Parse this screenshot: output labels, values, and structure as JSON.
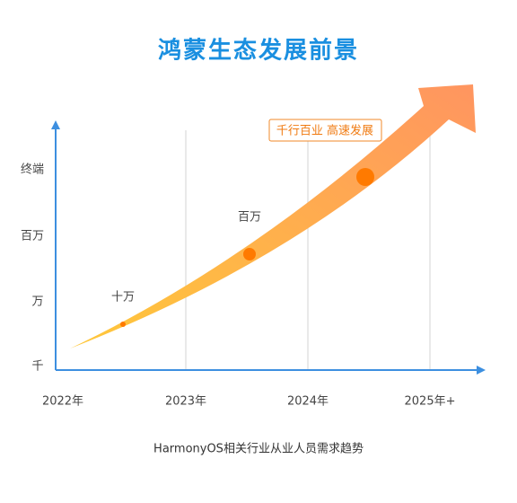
{
  "title": "鸿蒙生态发展前景",
  "y_labels": [
    "千",
    "万",
    "百万",
    "终端"
  ],
  "x_labels": [
    "2022年",
    "2023年",
    "2024年",
    "2025年+"
  ],
  "annotations": [
    "十万",
    "百万"
  ],
  "highlight": "千行百业 高速发展",
  "caption": "HarmonyOS相关行业从业人员需求趋势"
}
